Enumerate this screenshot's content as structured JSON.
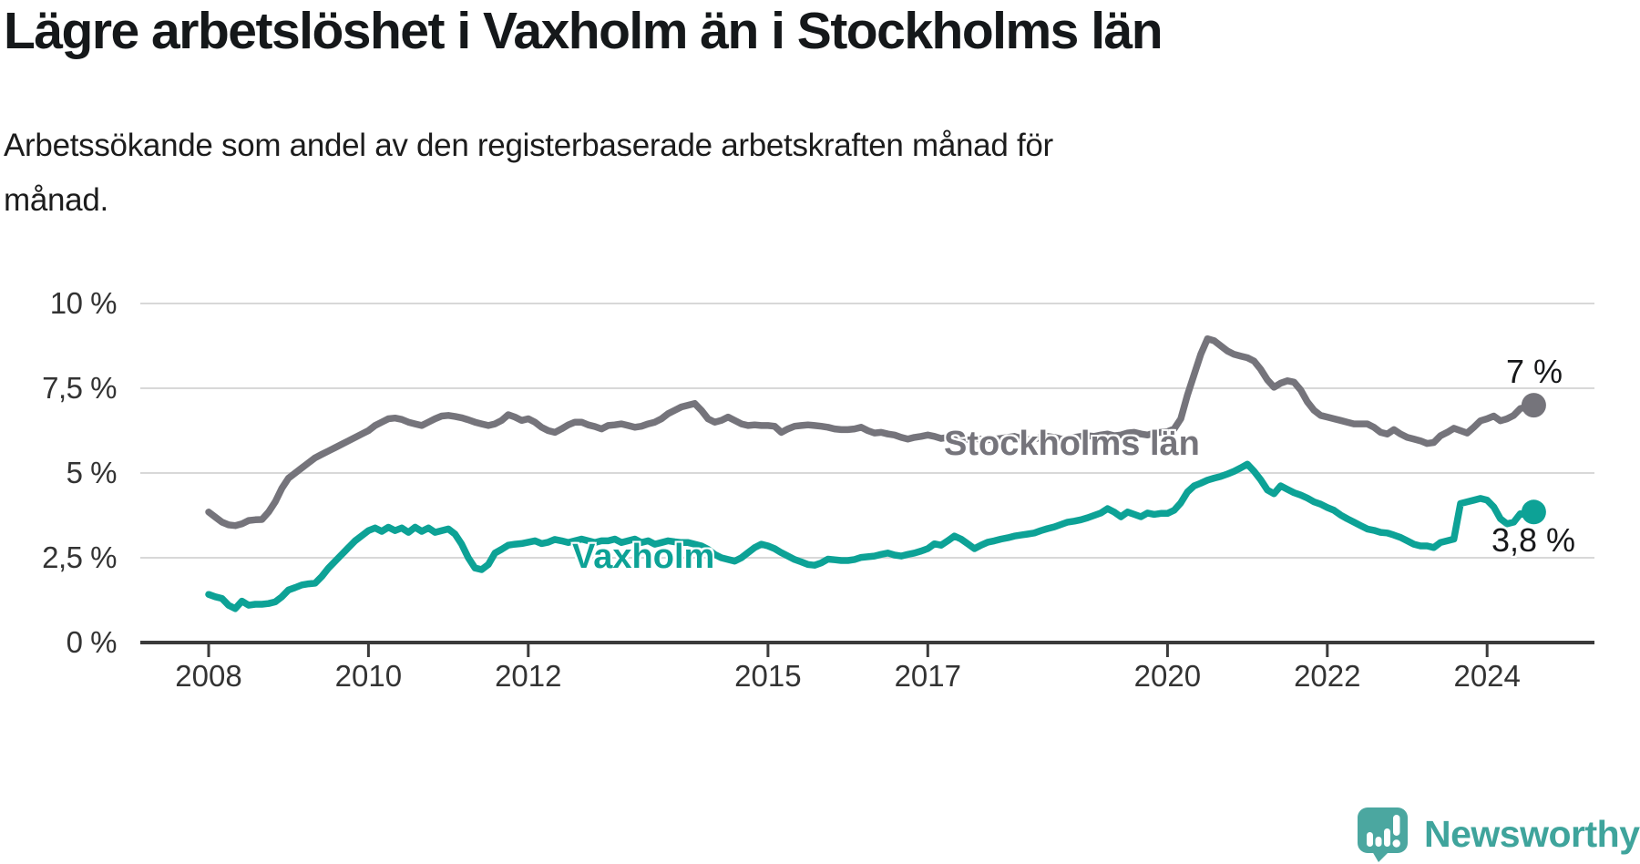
{
  "title": "Lägre arbetslöshet i Vaxholm än i Stockholms län",
  "subtitle_line1": "Arbetssökande som andel av den registerbaserade arbetskraften månad för",
  "subtitle_line2": "månad.",
  "logo": {
    "text": "Newsworthy",
    "icon": "speech-bubble-bar-chart",
    "color": "#4BA7A0",
    "text_color": "#3FA49C"
  },
  "chart_data": {
    "type": "line",
    "title": "Lägre arbetslöshet i Vaxholm än i Stockholms län",
    "subtitle": "Arbetssökande som andel av den registerbaserade arbetskraften månad för månad.",
    "x_unit": "month",
    "x_start_year": 2008,
    "x_end": "2024-08",
    "ylim": [
      0,
      10
    ],
    "grid": true,
    "grid_color": "#d8d8d8",
    "axis_color": "#3b3b3b",
    "tick_label_color": "#333333",
    "legend_position": "inline-labels",
    "y_ticks": [
      {
        "label": "0 %",
        "value": 0
      },
      {
        "label": "2,5 %",
        "value": 2.5
      },
      {
        "label": "5 %",
        "value": 5
      },
      {
        "label": "7,5 %",
        "value": 7.5
      },
      {
        "label": "10 %",
        "value": 10
      }
    ],
    "x_ticks": [
      {
        "label": "2008",
        "year": 2008
      },
      {
        "label": "2010",
        "year": 2010
      },
      {
        "label": "2012",
        "year": 2012
      },
      {
        "label": "2015",
        "year": 2015
      },
      {
        "label": "2017",
        "year": 2017
      },
      {
        "label": "2020",
        "year": 2020
      },
      {
        "label": "2022",
        "year": 2022
      },
      {
        "label": "2024",
        "year": 2024
      }
    ],
    "series": [
      {
        "name": "Stockholms län",
        "color": "#75747B",
        "end_label": "7 %",
        "end_value": 7.0,
        "values": [
          3.85,
          3.7,
          3.55,
          3.47,
          3.45,
          3.5,
          3.6,
          3.62,
          3.63,
          3.85,
          4.15,
          4.55,
          4.85,
          5.0,
          5.15,
          5.3,
          5.45,
          5.55,
          5.65,
          5.75,
          5.85,
          5.95,
          6.05,
          6.15,
          6.25,
          6.4,
          6.5,
          6.6,
          6.62,
          6.58,
          6.5,
          6.45,
          6.4,
          6.5,
          6.6,
          6.68,
          6.7,
          6.67,
          6.63,
          6.57,
          6.5,
          6.45,
          6.4,
          6.45,
          6.55,
          6.72,
          6.65,
          6.55,
          6.6,
          6.5,
          6.35,
          6.25,
          6.2,
          6.3,
          6.42,
          6.5,
          6.5,
          6.42,
          6.37,
          6.3,
          6.4,
          6.42,
          6.45,
          6.4,
          6.35,
          6.38,
          6.45,
          6.5,
          6.6,
          6.75,
          6.85,
          6.95,
          7.0,
          7.05,
          6.85,
          6.6,
          6.5,
          6.55,
          6.65,
          6.55,
          6.45,
          6.4,
          6.42,
          6.4,
          6.4,
          6.38,
          6.2,
          6.3,
          6.38,
          6.4,
          6.42,
          6.4,
          6.38,
          6.35,
          6.3,
          6.28,
          6.28,
          6.3,
          6.35,
          6.25,
          6.18,
          6.2,
          6.15,
          6.12,
          6.05,
          6.0,
          6.05,
          6.08,
          6.12,
          6.08,
          6.02,
          6.05,
          6.0,
          5.98,
          6.0,
          6.02,
          6.0,
          5.98,
          6.0,
          6.02,
          6.05,
          6.08,
          6.02,
          5.98,
          6.0,
          6.05,
          6.08,
          6.05,
          6.0,
          6.02,
          6.05,
          6.08,
          6.1,
          6.08,
          6.12,
          6.15,
          6.1,
          6.12,
          6.18,
          6.2,
          6.15,
          6.12,
          6.18,
          6.2,
          6.22,
          6.3,
          6.6,
          7.3,
          7.9,
          8.5,
          8.96,
          8.9,
          8.75,
          8.6,
          8.5,
          8.45,
          8.4,
          8.3,
          8.06,
          7.75,
          7.53,
          7.65,
          7.72,
          7.68,
          7.45,
          7.1,
          6.85,
          6.7,
          6.65,
          6.6,
          6.55,
          6.5,
          6.45,
          6.45,
          6.45,
          6.35,
          6.2,
          6.15,
          6.28,
          6.15,
          6.05,
          6.0,
          5.95,
          5.87,
          5.9,
          6.1,
          6.2,
          6.32,
          6.25,
          6.18,
          6.35,
          6.54,
          6.6,
          6.68,
          6.54,
          6.6,
          6.7,
          6.9,
          6.95,
          7.0
        ]
      },
      {
        "name": "Vaxholm",
        "color": "#0DA296",
        "end_label": "3,8 %",
        "end_value": 3.8,
        "values": [
          1.42,
          1.35,
          1.3,
          1.1,
          1.0,
          1.22,
          1.1,
          1.13,
          1.13,
          1.15,
          1.2,
          1.35,
          1.55,
          1.62,
          1.7,
          1.73,
          1.75,
          1.95,
          2.2,
          2.4,
          2.6,
          2.8,
          3.0,
          3.15,
          3.3,
          3.38,
          3.28,
          3.4,
          3.3,
          3.38,
          3.25,
          3.4,
          3.28,
          3.38,
          3.25,
          3.3,
          3.35,
          3.2,
          2.9,
          2.5,
          2.2,
          2.15,
          2.3,
          2.64,
          2.75,
          2.87,
          2.9,
          2.92,
          2.96,
          3.0,
          2.92,
          2.96,
          3.04,
          3.0,
          2.95,
          3.0,
          3.05,
          3.0,
          2.95,
          3.0,
          3.0,
          3.05,
          2.95,
          3.0,
          3.05,
          2.95,
          3.0,
          2.9,
          2.95,
          3.0,
          2.97,
          2.95,
          2.95,
          2.9,
          2.85,
          2.75,
          2.6,
          2.5,
          2.45,
          2.4,
          2.5,
          2.65,
          2.8,
          2.9,
          2.85,
          2.77,
          2.65,
          2.55,
          2.45,
          2.38,
          2.3,
          2.28,
          2.35,
          2.46,
          2.44,
          2.42,
          2.42,
          2.45,
          2.51,
          2.53,
          2.55,
          2.6,
          2.64,
          2.58,
          2.55,
          2.6,
          2.64,
          2.7,
          2.77,
          2.91,
          2.87,
          3.0,
          3.14,
          3.05,
          2.91,
          2.77,
          2.87,
          2.96,
          3.0,
          3.05,
          3.09,
          3.14,
          3.17,
          3.2,
          3.23,
          3.3,
          3.36,
          3.41,
          3.48,
          3.55,
          3.58,
          3.62,
          3.68,
          3.75,
          3.82,
          3.95,
          3.85,
          3.71,
          3.85,
          3.78,
          3.71,
          3.82,
          3.78,
          3.81,
          3.81,
          3.9,
          4.12,
          4.44,
          4.62,
          4.7,
          4.79,
          4.85,
          4.9,
          4.97,
          5.05,
          5.15,
          5.26,
          5.05,
          4.8,
          4.5,
          4.39,
          4.62,
          4.52,
          4.42,
          4.35,
          4.26,
          4.15,
          4.08,
          3.98,
          3.9,
          3.76,
          3.65,
          3.55,
          3.45,
          3.35,
          3.31,
          3.25,
          3.23,
          3.17,
          3.1,
          3.0,
          2.9,
          2.85,
          2.85,
          2.8,
          2.95,
          3.0,
          3.05,
          4.1,
          4.15,
          4.2,
          4.25,
          4.2,
          4.0,
          3.65,
          3.5,
          3.55,
          3.8,
          3.75,
          3.85
        ]
      }
    ]
  }
}
